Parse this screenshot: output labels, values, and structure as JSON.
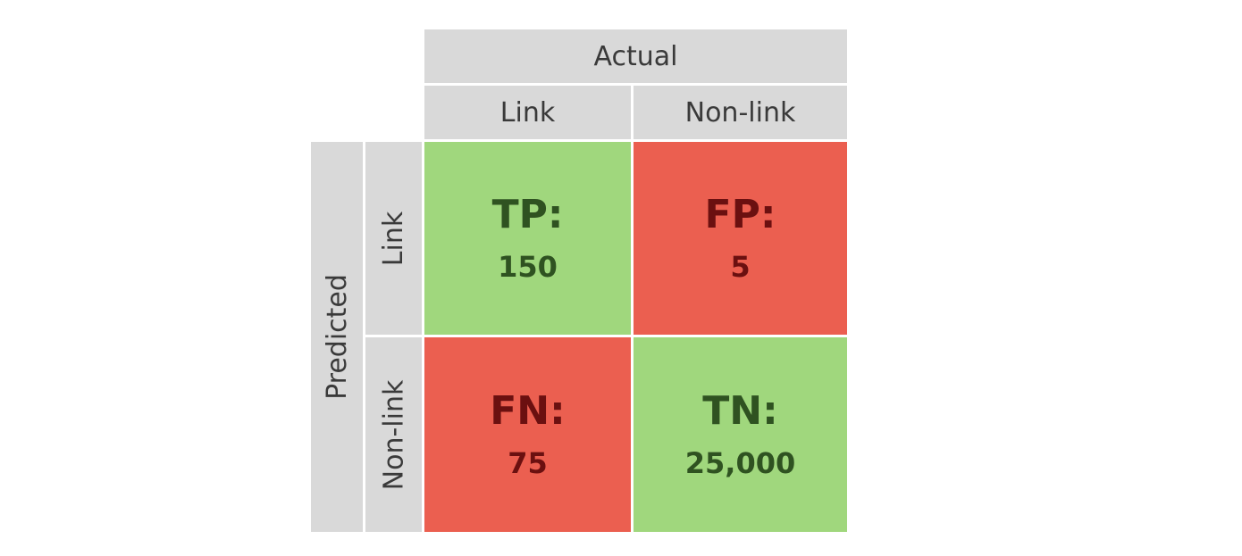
{
  "headers": {
    "actual": "Actual",
    "predicted": "Predicted",
    "col_link": "Link",
    "col_nonlink": "Non-link",
    "row_link": "Link",
    "row_nonlink": "Non-link"
  },
  "matrix": {
    "tp": {
      "label": "TP:",
      "value": "150"
    },
    "fp": {
      "label": "FP:",
      "value": "5"
    },
    "fn": {
      "label": "FN:",
      "value": "75"
    },
    "tn": {
      "label": "TN:",
      "value": "25,000"
    }
  },
  "colors": {
    "correct": "#a0d77d",
    "incorrect": "#eb5f50",
    "header": "#d9d9d9"
  }
}
